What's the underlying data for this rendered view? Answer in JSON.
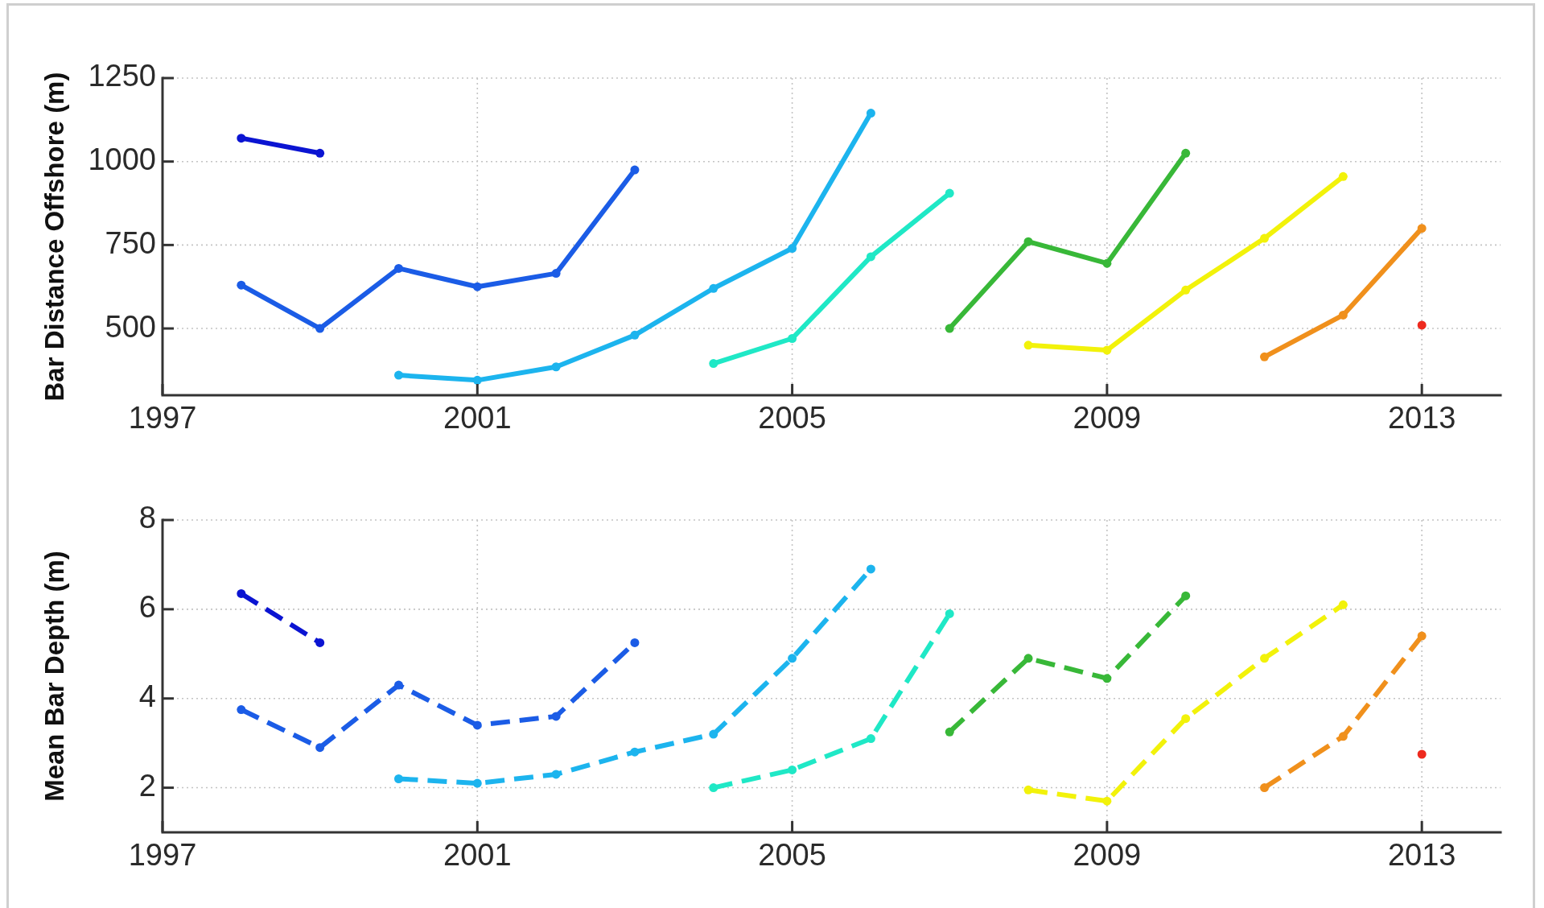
{
  "chart_data": [
    {
      "type": "line",
      "ylabel": "Bar Distance Offshore (m)",
      "xlim": [
        1997,
        2014
      ],
      "xticks": [
        1997,
        2001,
        2005,
        2009,
        2013
      ],
      "ylim": [
        300,
        1250
      ],
      "yticks": [
        500,
        750,
        1000,
        1250
      ],
      "grid": true,
      "marker": "circle",
      "line_style": "solid",
      "series": [
        {
          "color": "#0b14d2",
          "x": [
            1998,
            1999
          ],
          "values": [
            1070,
            1025
          ]
        },
        {
          "color": "#1b5ce6",
          "x": [
            1998,
            1999,
            2000,
            2001,
            2002,
            2003
          ],
          "values": [
            630,
            500,
            680,
            625,
            665,
            975
          ]
        },
        {
          "color": "#1cb4ee",
          "x": [
            2000,
            2001,
            2002,
            2003,
            2004,
            2005,
            2006
          ],
          "values": [
            360,
            345,
            385,
            480,
            620,
            740,
            1145
          ]
        },
        {
          "color": "#1fe8c6",
          "x": [
            2004,
            2005,
            2006,
            2007
          ],
          "values": [
            395,
            470,
            715,
            905
          ]
        },
        {
          "color": "#38b838",
          "x": [
            2007,
            2008,
            2009,
            2010
          ],
          "values": [
            500,
            760,
            695,
            1025
          ]
        },
        {
          "color": "#f2f20a",
          "x": [
            2008,
            2009,
            2010,
            2011,
            2012
          ],
          "values": [
            450,
            435,
            615,
            770,
            955
          ]
        },
        {
          "color": "#f0901c",
          "x": [
            2011,
            2012,
            2013
          ],
          "values": [
            415,
            540,
            800
          ]
        },
        {
          "color": "#ee2a1e",
          "x": [
            2013
          ],
          "values": [
            510
          ]
        }
      ]
    },
    {
      "type": "line",
      "ylabel": "Mean Bar Depth (m)",
      "xlim": [
        1997,
        2014
      ],
      "xticks": [
        1997,
        2001,
        2005,
        2009,
        2013
      ],
      "ylim": [
        1,
        8
      ],
      "yticks": [
        2,
        4,
        6,
        8
      ],
      "grid": true,
      "marker": "circle",
      "line_style": "dashed",
      "series": [
        {
          "color": "#0b14d2",
          "x": [
            1998,
            1999
          ],
          "values": [
            6.35,
            5.25
          ]
        },
        {
          "color": "#1b5ce6",
          "x": [
            1998,
            1999,
            2000,
            2001,
            2002,
            2003
          ],
          "values": [
            3.75,
            2.9,
            4.3,
            3.4,
            3.6,
            5.25
          ]
        },
        {
          "color": "#1cb4ee",
          "x": [
            2000,
            2001,
            2002,
            2003,
            2004,
            2005,
            2006
          ],
          "values": [
            2.2,
            2.1,
            2.3,
            2.8,
            3.2,
            4.9,
            6.9
          ]
        },
        {
          "color": "#1fe8c6",
          "x": [
            2004,
            2005,
            2006,
            2007
          ],
          "values": [
            2.0,
            2.4,
            3.1,
            5.9
          ]
        },
        {
          "color": "#38b838",
          "x": [
            2007,
            2008,
            2009,
            2010
          ],
          "values": [
            3.25,
            4.9,
            4.45,
            6.3
          ]
        },
        {
          "color": "#f2f20a",
          "x": [
            2008,
            2009,
            2010,
            2011,
            2012
          ],
          "values": [
            1.95,
            1.7,
            3.55,
            4.9,
            6.1
          ]
        },
        {
          "color": "#f0901c",
          "x": [
            2011,
            2012,
            2013
          ],
          "values": [
            2.0,
            3.15,
            5.4
          ]
        },
        {
          "color": "#ee2a1e",
          "x": [
            2013
          ],
          "values": [
            2.75
          ]
        }
      ]
    }
  ]
}
